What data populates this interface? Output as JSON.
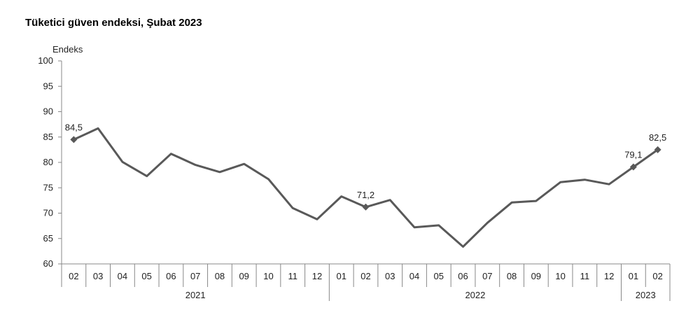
{
  "chart_data": {
    "type": "line",
    "title": "Tüketici güven endeksi, Şubat 2023",
    "ylabel": "Endeks",
    "xlabel": "",
    "ylim": [
      60,
      100
    ],
    "yticks": [
      "60",
      "65",
      "70",
      "75",
      "80",
      "85",
      "90",
      "95",
      "100"
    ],
    "categories": [
      "02",
      "03",
      "04",
      "05",
      "06",
      "07",
      "08",
      "09",
      "10",
      "11",
      "12",
      "01",
      "02",
      "03",
      "04",
      "05",
      "06",
      "07",
      "08",
      "09",
      "10",
      "11",
      "12",
      "01",
      "02"
    ],
    "year_groups": [
      {
        "label": "2021",
        "start": 0,
        "end": 10
      },
      {
        "label": "2022",
        "start": 11,
        "end": 22
      },
      {
        "label": "2023",
        "start": 23,
        "end": 24
      }
    ],
    "series": [
      {
        "values": [
          84.5,
          86.7,
          80.1,
          77.3,
          81.7,
          79.5,
          78.1,
          79.7,
          76.7,
          71.0,
          68.8,
          73.3,
          71.2,
          72.6,
          67.2,
          67.6,
          63.4,
          68.1,
          72.1,
          72.4,
          76.1,
          76.6,
          75.7,
          79.1,
          82.5
        ],
        "color": "#595959"
      }
    ],
    "labeled_points": [
      {
        "index": 0,
        "label": "84,5"
      },
      {
        "index": 12,
        "label": "71,2"
      },
      {
        "index": 23,
        "label": "79,1"
      },
      {
        "index": 24,
        "label": "82,5"
      }
    ],
    "grid": false,
    "legend": "none"
  }
}
